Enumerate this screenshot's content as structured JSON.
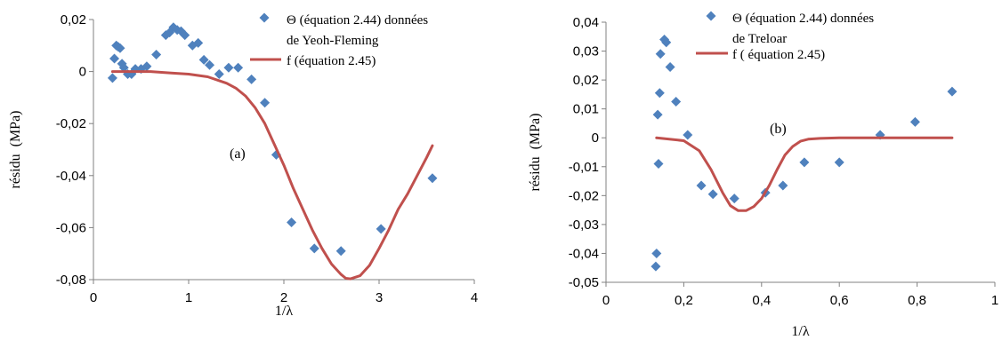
{
  "chart_data": [
    {
      "type": "scatter",
      "annotation": "(a)",
      "xlabel": "1/λ",
      "ylabel": "résidu  (MPa)",
      "xlim": [
        0,
        4
      ],
      "ylim": [
        -0.08,
        0.02
      ],
      "x_ticks": [
        0,
        1,
        2,
        3,
        4
      ],
      "x_tick_labels": [
        "0",
        "1",
        "2",
        "3",
        "4"
      ],
      "y_ticks": [
        0.02,
        0,
        -0.02,
        -0.04,
        -0.06,
        -0.08
      ],
      "y_tick_labels": [
        "0,02",
        "0",
        "-0,02",
        "-0,04",
        "-0,06",
        "-0,08"
      ],
      "grid": false,
      "legend_position": "top-right",
      "colors": {
        "points": "#4F81BD",
        "curve": "#C0504D",
        "axis": "#000000"
      },
      "series": [
        {
          "name_lines": [
            "Θ (équation  2.44) données",
            "de Yeoh-Fleming"
          ],
          "type": "scatter",
          "marker": "diamond",
          "x": [
            0.2,
            0.22,
            0.24,
            0.26,
            0.28,
            0.3,
            0.32,
            0.36,
            0.4,
            0.44,
            0.5,
            0.56,
            0.66,
            0.76,
            0.8,
            0.84,
            0.88,
            0.92,
            0.96,
            1.04,
            1.1,
            1.16,
            1.22,
            1.32,
            1.42,
            1.52,
            1.66,
            1.8,
            1.92,
            2.08,
            2.32,
            2.6,
            3.02,
            3.56
          ],
          "y": [
            -0.0025,
            0.005,
            0.01,
            0.0095,
            0.009,
            0.003,
            0.0015,
            -0.001,
            -0.001,
            0.001,
            0.001,
            0.002,
            0.0065,
            0.014,
            0.015,
            0.017,
            0.016,
            0.0155,
            0.014,
            0.01,
            0.011,
            0.0045,
            0.0025,
            -0.001,
            0.0015,
            0.0015,
            -0.003,
            -0.012,
            -0.032,
            -0.058,
            -0.068,
            -0.069,
            -0.0605,
            -0.041
          ]
        },
        {
          "name": "f (équation 2.45)",
          "type": "line",
          "x": [
            0.2,
            0.4,
            0.6,
            0.8,
            1.0,
            1.2,
            1.4,
            1.5,
            1.6,
            1.7,
            1.8,
            1.9,
            2.0,
            2.1,
            2.2,
            2.3,
            2.4,
            2.5,
            2.6,
            2.65,
            2.7,
            2.8,
            2.9,
            3.0,
            3.1,
            3.2,
            3.3,
            3.4,
            3.5,
            3.56
          ],
          "y": [
            0,
            0,
            0,
            -0.0005,
            -0.001,
            -0.002,
            -0.0045,
            -0.0065,
            -0.0095,
            -0.014,
            -0.02,
            -0.028,
            -0.036,
            -0.045,
            -0.053,
            -0.061,
            -0.068,
            -0.074,
            -0.078,
            -0.0795,
            -0.0797,
            -0.0785,
            -0.0745,
            -0.068,
            -0.061,
            -0.053,
            -0.047,
            -0.04,
            -0.033,
            -0.0285
          ]
        }
      ]
    },
    {
      "type": "scatter",
      "annotation": "(b)",
      "xlabel": "1/λ",
      "ylabel": "résidu  (MPa)",
      "xlim": [
        0,
        1
      ],
      "ylim": [
        -0.05,
        0.04
      ],
      "x_ticks": [
        0,
        0.2,
        0.4,
        0.6,
        0.8,
        1
      ],
      "x_tick_labels": [
        "0",
        "0,2",
        "0,4",
        "0,6",
        "0,8",
        "1"
      ],
      "y_ticks": [
        0.04,
        0.03,
        0.02,
        0.01,
        0,
        -0.01,
        -0.02,
        -0.03,
        -0.04,
        -0.05
      ],
      "y_tick_labels": [
        "0,04",
        "0,03",
        "0,02",
        "0,01",
        "0",
        "-0,01",
        "-0,02",
        "-0,03",
        "-0,04",
        "-0,05"
      ],
      "grid": false,
      "legend_position": "top-right",
      "colors": {
        "points": "#4F81BD",
        "curve": "#C0504D",
        "axis": "#000000"
      },
      "series": [
        {
          "name_lines": [
            "Θ (équation  2.44) données",
            "de Treloar"
          ],
          "type": "scatter",
          "marker": "diamond",
          "x": [
            0.128,
            0.13,
            0.133,
            0.135,
            0.138,
            0.14,
            0.15,
            0.155,
            0.165,
            0.18,
            0.21,
            0.245,
            0.275,
            0.33,
            0.41,
            0.455,
            0.51,
            0.6,
            0.705,
            0.795,
            0.89
          ],
          "y": [
            -0.0445,
            -0.04,
            0.008,
            -0.009,
            0.0155,
            0.029,
            0.034,
            0.033,
            0.0245,
            0.0125,
            0.001,
            -0.0165,
            -0.0195,
            -0.021,
            -0.019,
            -0.0165,
            -0.0085,
            -0.0085,
            0.001,
            0.0055,
            0.016
          ]
        },
        {
          "name": "f ( équation 2.45)",
          "type": "line",
          "x": [
            0.13,
            0.2,
            0.24,
            0.27,
            0.3,
            0.32,
            0.34,
            0.36,
            0.38,
            0.4,
            0.42,
            0.44,
            0.46,
            0.48,
            0.5,
            0.52,
            0.55,
            0.6,
            0.7,
            0.8,
            0.89
          ],
          "y": [
            0,
            -0.001,
            -0.0045,
            -0.011,
            -0.019,
            -0.0235,
            -0.0252,
            -0.0252,
            -0.0238,
            -0.021,
            -0.0165,
            -0.011,
            -0.006,
            -0.003,
            -0.0012,
            -0.0005,
            -0.0002,
            0,
            0,
            0,
            0
          ]
        }
      ]
    }
  ]
}
